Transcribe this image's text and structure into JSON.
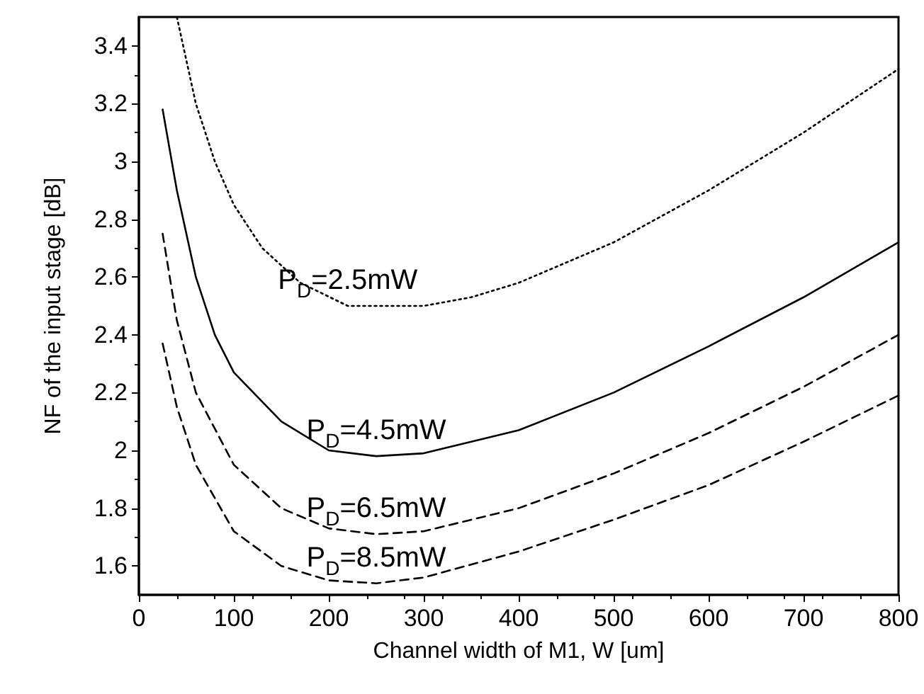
{
  "chart_data": {
    "type": "line",
    "xlabel": "Channel width of M1, W [um]",
    "ylabel": "NF of the input stage [dB]",
    "xlim": [
      0,
      800
    ],
    "xticks": [
      0,
      100,
      200,
      300,
      400,
      500,
      600,
      700,
      800
    ],
    "ylim": [
      1.5,
      3.5
    ],
    "yticks": [
      1.6,
      1.8,
      2,
      2.2,
      2.4,
      2.6,
      2.8,
      3,
      3.2,
      3.4
    ],
    "grid": false,
    "marker": "none",
    "series": [
      {
        "name": "P$_{D}$=2.5mW",
        "color": "#000000",
        "line_style": "dotted",
        "x": [
          40,
          60,
          80,
          100,
          130,
          170,
          220,
          300,
          350,
          400,
          500,
          600,
          700,
          800
        ],
        "values": [
          3.5,
          3.2,
          3.0,
          2.85,
          2.7,
          2.58,
          2.5,
          2.5,
          2.53,
          2.58,
          2.72,
          2.9,
          3.1,
          3.32
        ]
      },
      {
        "name": "P$_{D}$=4.5mW",
        "color": "#000000",
        "line_style": "solid",
        "x": [
          25,
          40,
          60,
          80,
          100,
          150,
          200,
          250,
          300,
          400,
          500,
          600,
          700,
          800
        ],
        "values": [
          3.18,
          2.9,
          2.6,
          2.4,
          2.27,
          2.1,
          2.0,
          1.98,
          1.99,
          2.07,
          2.2,
          2.36,
          2.53,
          2.72
        ]
      },
      {
        "name": "P$_{D}$=6.5mW",
        "color": "#000000",
        "line_style": "dashed",
        "x": [
          25,
          40,
          60,
          100,
          150,
          200,
          250,
          300,
          400,
          500,
          600,
          700,
          800
        ],
        "values": [
          2.75,
          2.45,
          2.2,
          1.95,
          1.8,
          1.73,
          1.71,
          1.72,
          1.8,
          1.92,
          2.06,
          2.22,
          2.4
        ]
      },
      {
        "name": "P$_{D}$=8.5mW",
        "color": "#000000",
        "line_style": "dashed",
        "x": [
          25,
          40,
          60,
          100,
          150,
          200,
          250,
          300,
          400,
          500,
          600,
          700,
          800
        ],
        "values": [
          2.37,
          2.15,
          1.95,
          1.72,
          1.6,
          1.55,
          1.54,
          1.56,
          1.65,
          1.76,
          1.88,
          2.03,
          2.19
        ]
      }
    ]
  }
}
